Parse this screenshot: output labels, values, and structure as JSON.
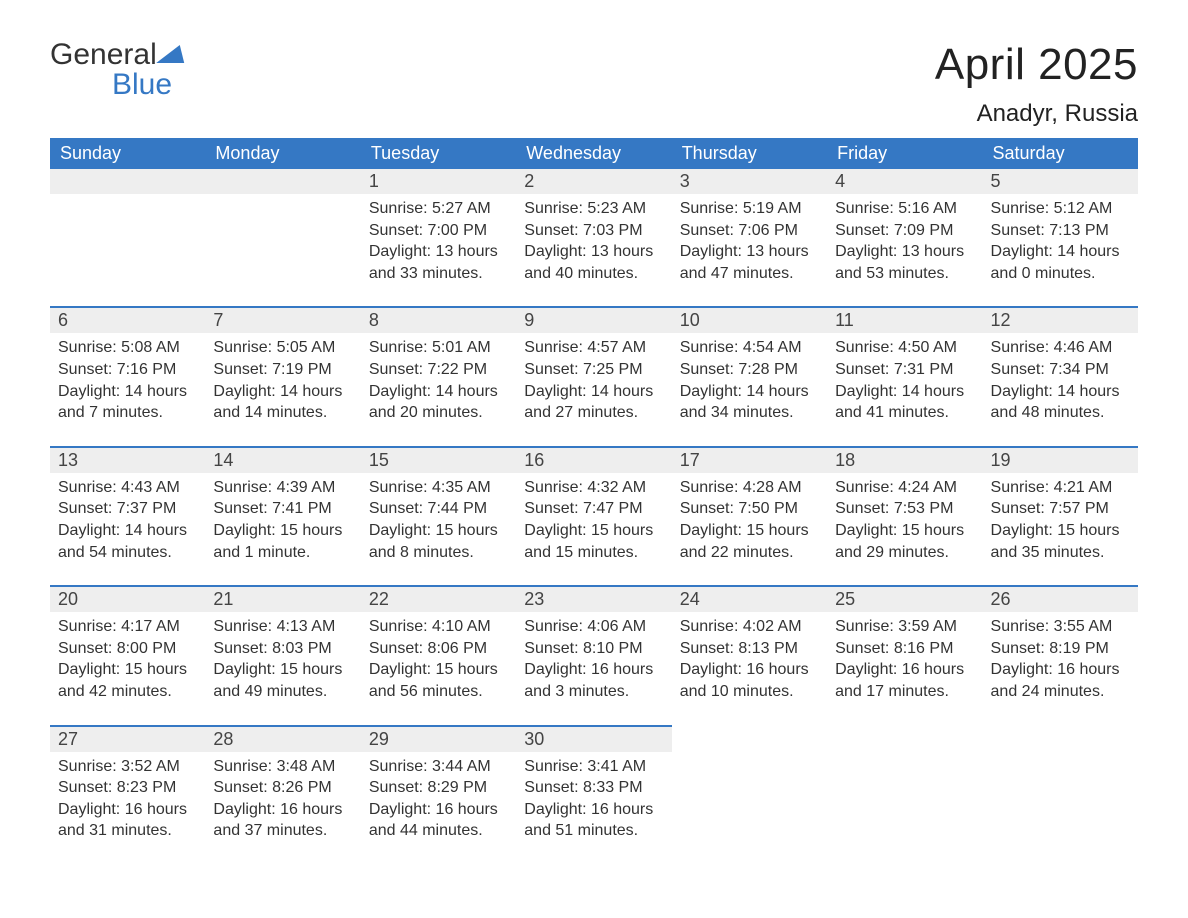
{
  "logo": {
    "line1": "General",
    "line2": "Blue",
    "brand_color": "#3578c4"
  },
  "header": {
    "title": "April 2025",
    "location": "Anadyr, Russia"
  },
  "style": {
    "header_bg": "#3578c4",
    "header_text": "#ffffff",
    "daynum_bg": "#eeeeee",
    "border_color": "#3578c4",
    "body_text": "#333333",
    "title_fontsize": 44,
    "subtitle_fontsize": 24,
    "dayhead_fontsize": 18,
    "data_fontsize": 16
  },
  "dayHeaders": [
    "Sunday",
    "Monday",
    "Tuesday",
    "Wednesday",
    "Thursday",
    "Friday",
    "Saturday"
  ],
  "weeks": [
    [
      {
        "num": "",
        "lines": []
      },
      {
        "num": "",
        "lines": []
      },
      {
        "num": "1",
        "lines": [
          "Sunrise: 5:27 AM",
          "Sunset: 7:00 PM",
          "Daylight: 13 hours",
          "and 33 minutes."
        ]
      },
      {
        "num": "2",
        "lines": [
          "Sunrise: 5:23 AM",
          "Sunset: 7:03 PM",
          "Daylight: 13 hours",
          "and 40 minutes."
        ]
      },
      {
        "num": "3",
        "lines": [
          "Sunrise: 5:19 AM",
          "Sunset: 7:06 PM",
          "Daylight: 13 hours",
          "and 47 minutes."
        ]
      },
      {
        "num": "4",
        "lines": [
          "Sunrise: 5:16 AM",
          "Sunset: 7:09 PM",
          "Daylight: 13 hours",
          "and 53 minutes."
        ]
      },
      {
        "num": "5",
        "lines": [
          "Sunrise: 5:12 AM",
          "Sunset: 7:13 PM",
          "Daylight: 14 hours",
          "and 0 minutes."
        ]
      }
    ],
    [
      {
        "num": "6",
        "lines": [
          "Sunrise: 5:08 AM",
          "Sunset: 7:16 PM",
          "Daylight: 14 hours",
          "and 7 minutes."
        ]
      },
      {
        "num": "7",
        "lines": [
          "Sunrise: 5:05 AM",
          "Sunset: 7:19 PM",
          "Daylight: 14 hours",
          "and 14 minutes."
        ]
      },
      {
        "num": "8",
        "lines": [
          "Sunrise: 5:01 AM",
          "Sunset: 7:22 PM",
          "Daylight: 14 hours",
          "and 20 minutes."
        ]
      },
      {
        "num": "9",
        "lines": [
          "Sunrise: 4:57 AM",
          "Sunset: 7:25 PM",
          "Daylight: 14 hours",
          "and 27 minutes."
        ]
      },
      {
        "num": "10",
        "lines": [
          "Sunrise: 4:54 AM",
          "Sunset: 7:28 PM",
          "Daylight: 14 hours",
          "and 34 minutes."
        ]
      },
      {
        "num": "11",
        "lines": [
          "Sunrise: 4:50 AM",
          "Sunset: 7:31 PM",
          "Daylight: 14 hours",
          "and 41 minutes."
        ]
      },
      {
        "num": "12",
        "lines": [
          "Sunrise: 4:46 AM",
          "Sunset: 7:34 PM",
          "Daylight: 14 hours",
          "and 48 minutes."
        ]
      }
    ],
    [
      {
        "num": "13",
        "lines": [
          "Sunrise: 4:43 AM",
          "Sunset: 7:37 PM",
          "Daylight: 14 hours",
          "and 54 minutes."
        ]
      },
      {
        "num": "14",
        "lines": [
          "Sunrise: 4:39 AM",
          "Sunset: 7:41 PM",
          "Daylight: 15 hours",
          "and 1 minute."
        ]
      },
      {
        "num": "15",
        "lines": [
          "Sunrise: 4:35 AM",
          "Sunset: 7:44 PM",
          "Daylight: 15 hours",
          "and 8 minutes."
        ]
      },
      {
        "num": "16",
        "lines": [
          "Sunrise: 4:32 AM",
          "Sunset: 7:47 PM",
          "Daylight: 15 hours",
          "and 15 minutes."
        ]
      },
      {
        "num": "17",
        "lines": [
          "Sunrise: 4:28 AM",
          "Sunset: 7:50 PM",
          "Daylight: 15 hours",
          "and 22 minutes."
        ]
      },
      {
        "num": "18",
        "lines": [
          "Sunrise: 4:24 AM",
          "Sunset: 7:53 PM",
          "Daylight: 15 hours",
          "and 29 minutes."
        ]
      },
      {
        "num": "19",
        "lines": [
          "Sunrise: 4:21 AM",
          "Sunset: 7:57 PM",
          "Daylight: 15 hours",
          "and 35 minutes."
        ]
      }
    ],
    [
      {
        "num": "20",
        "lines": [
          "Sunrise: 4:17 AM",
          "Sunset: 8:00 PM",
          "Daylight: 15 hours",
          "and 42 minutes."
        ]
      },
      {
        "num": "21",
        "lines": [
          "Sunrise: 4:13 AM",
          "Sunset: 8:03 PM",
          "Daylight: 15 hours",
          "and 49 minutes."
        ]
      },
      {
        "num": "22",
        "lines": [
          "Sunrise: 4:10 AM",
          "Sunset: 8:06 PM",
          "Daylight: 15 hours",
          "and 56 minutes."
        ]
      },
      {
        "num": "23",
        "lines": [
          "Sunrise: 4:06 AM",
          "Sunset: 8:10 PM",
          "Daylight: 16 hours",
          "and 3 minutes."
        ]
      },
      {
        "num": "24",
        "lines": [
          "Sunrise: 4:02 AM",
          "Sunset: 8:13 PM",
          "Daylight: 16 hours",
          "and 10 minutes."
        ]
      },
      {
        "num": "25",
        "lines": [
          "Sunrise: 3:59 AM",
          "Sunset: 8:16 PM",
          "Daylight: 16 hours",
          "and 17 minutes."
        ]
      },
      {
        "num": "26",
        "lines": [
          "Sunrise: 3:55 AM",
          "Sunset: 8:19 PM",
          "Daylight: 16 hours",
          "and 24 minutes."
        ]
      }
    ],
    [
      {
        "num": "27",
        "lines": [
          "Sunrise: 3:52 AM",
          "Sunset: 8:23 PM",
          "Daylight: 16 hours",
          "and 31 minutes."
        ]
      },
      {
        "num": "28",
        "lines": [
          "Sunrise: 3:48 AM",
          "Sunset: 8:26 PM",
          "Daylight: 16 hours",
          "and 37 minutes."
        ]
      },
      {
        "num": "29",
        "lines": [
          "Sunrise: 3:44 AM",
          "Sunset: 8:29 PM",
          "Daylight: 16 hours",
          "and 44 minutes."
        ]
      },
      {
        "num": "30",
        "lines": [
          "Sunrise: 3:41 AM",
          "Sunset: 8:33 PM",
          "Daylight: 16 hours",
          "and 51 minutes."
        ]
      },
      {
        "num": "",
        "lines": []
      },
      {
        "num": "",
        "lines": []
      },
      {
        "num": "",
        "lines": []
      }
    ]
  ]
}
